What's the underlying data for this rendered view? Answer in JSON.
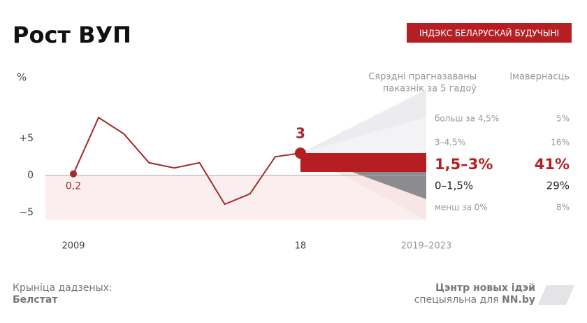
{
  "chart_data": {
    "type": "line",
    "title": "Рост ВУП",
    "badge": "ІНДЭКС БЕЛАРУСКАЙ БУДУЧЫНІ",
    "y_label": "%",
    "categories": [
      "2009",
      null,
      null,
      null,
      null,
      null,
      null,
      null,
      null,
      "18"
    ],
    "values": [
      0.2,
      7.8,
      5.6,
      1.7,
      1.0,
      1.7,
      -3.9,
      -2.5,
      2.5,
      3.0
    ],
    "value_labels": [
      "0,2",
      null,
      null,
      null,
      null,
      null,
      null,
      null,
      null,
      "3"
    ],
    "color": "#a52a2a",
    "ylim": [
      -6,
      8
    ],
    "yticks": [
      {
        "value": 5,
        "label": "+5"
      },
      0,
      {
        "value": -5,
        "label": "−5"
      }
    ],
    "forecast": {
      "period": "2019–2023",
      "header": [
        "Сярэдні прагназаваны",
        "паказнік за 5 гадоў"
      ],
      "probability_header": "Імавернасць",
      "rows": [
        {
          "label": "больш за 4,5%",
          "probability": 5,
          "probability_label": "5%",
          "color": "#ececef"
        },
        {
          "label": "3–4,5%",
          "probability": 16,
          "probability_label": "16%",
          "color": "#f3f3f5"
        },
        {
          "label": "1,5–3%",
          "probability": 41,
          "probability_label": "41%",
          "color": "#b51f24"
        },
        {
          "label": "0–1,5%",
          "probability": 29,
          "probability_label": "29%",
          "color": "#8c8c90"
        },
        {
          "label": "менш за 0%",
          "probability": 8,
          "probability_label": "8%",
          "color": "#f8e6e6"
        }
      ]
    },
    "source_label": "Крыніца дадзеных:",
    "source": "Белстат",
    "credit": "Цэнтр новых ідэй",
    "credit_prefix": "спецыяльна для",
    "credit_brand": "NN.by"
  }
}
